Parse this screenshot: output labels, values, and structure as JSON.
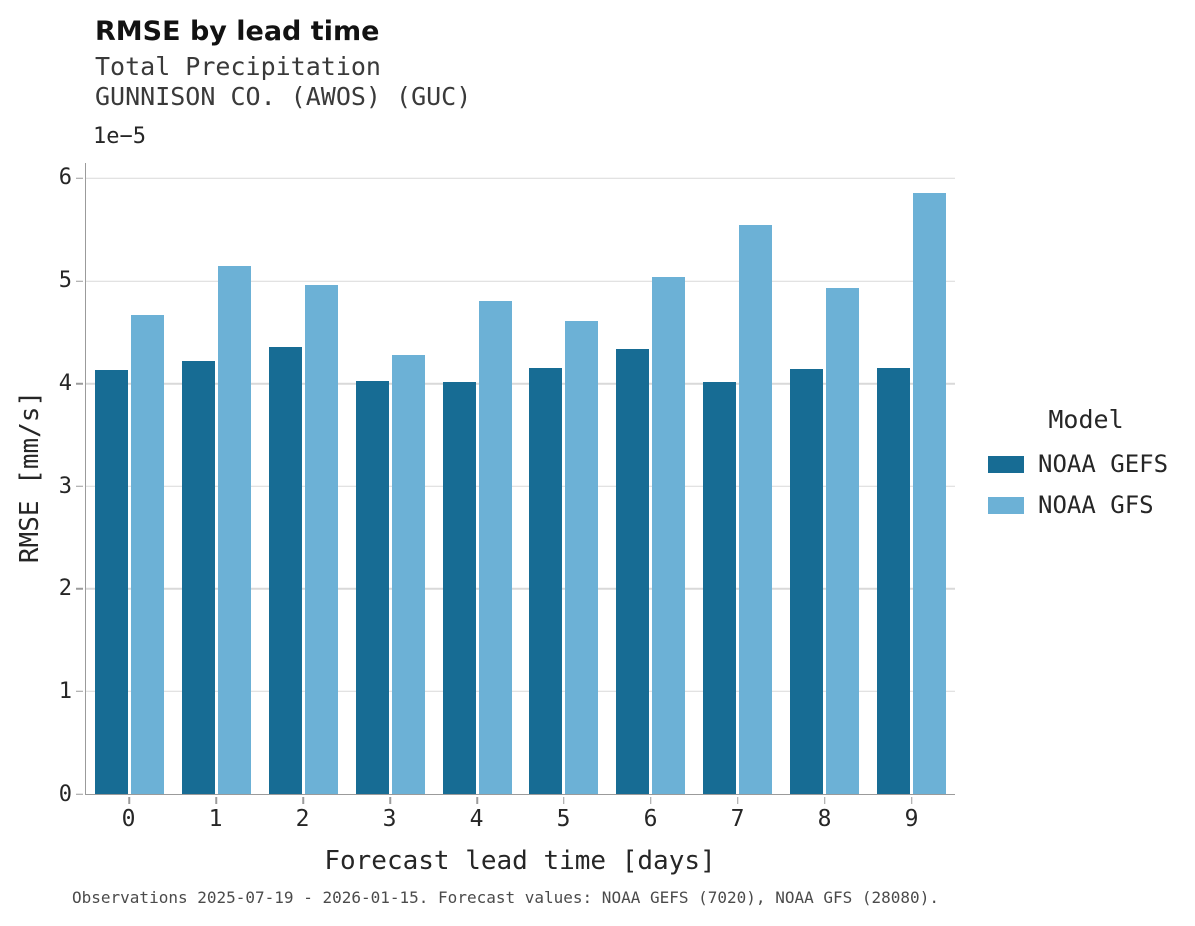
{
  "chart_data": {
    "type": "bar",
    "title": "RMSE by lead time",
    "subtitle_line1": "Total Precipitation",
    "subtitle_line2": "GUNNISON CO. (AWOS) (GUC)",
    "categories": [
      "0",
      "1",
      "2",
      "3",
      "4",
      "5",
      "6",
      "7",
      "8",
      "9"
    ],
    "series": [
      {
        "name": "NOAA GEFS",
        "color": "#176c94",
        "values": [
          4.13,
          4.22,
          4.36,
          4.03,
          4.02,
          4.15,
          4.34,
          4.02,
          4.14,
          4.15
        ]
      },
      {
        "name": "NOAA GFS",
        "color": "#6cb1d6",
        "values": [
          4.67,
          5.15,
          4.96,
          4.28,
          4.81,
          4.61,
          5.04,
          5.55,
          4.93,
          5.86
        ]
      }
    ],
    "value_unit_scale": "1e−5",
    "xlabel": "Forecast lead time [days]",
    "ylabel": "RMSE [mm/s]",
    "ylim": [
      0,
      6
    ],
    "ymax_display": 6.15,
    "yticks": [
      0,
      1,
      2,
      3,
      4,
      5,
      6
    ],
    "grid": "horizontal",
    "legend": {
      "title": "Model",
      "position": "right"
    },
    "colors": {
      "gridline": "#d9d9d9",
      "spine": "#9b9b9b",
      "text": "#262626"
    }
  },
  "footer": {
    "note": "Observations 2025-07-19 - 2026-01-15. Forecast values: NOAA GEFS (7020), NOAA GFS (28080)."
  }
}
